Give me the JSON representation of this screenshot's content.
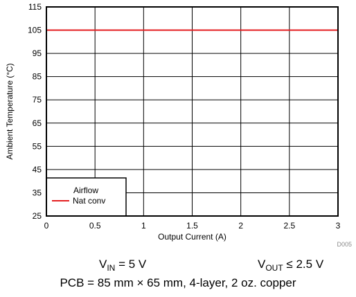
{
  "chart_data": {
    "type": "line",
    "title": "",
    "xlabel": "Output Current (A)",
    "ylabel": "Ambient Temperature (°C)",
    "xlim": [
      0,
      3
    ],
    "ylim": [
      25,
      115
    ],
    "x_ticks": [
      "0",
      "0.5",
      "1",
      "1.5",
      "2",
      "2.5",
      "3"
    ],
    "y_ticks": [
      "25",
      "35",
      "45",
      "55",
      "65",
      "75",
      "85",
      "95",
      "105",
      "115"
    ],
    "grid": true,
    "legend": {
      "title": "Airflow",
      "placement": "bottom-left"
    },
    "series": [
      {
        "name": "Nat conv",
        "color": "#e41e20",
        "x": [
          0,
          3
        ],
        "y": [
          105,
          105
        ]
      }
    ],
    "annotation": "D005"
  },
  "conditions": {
    "vin": {
      "prefix": "V",
      "sub": "IN",
      "suffix": " = 5 V"
    },
    "vout": {
      "prefix": "V",
      "sub": "OUT",
      "suffix": " ≤ 2.5 V"
    },
    "pcb": "PCB = 85 mm × 65 mm, 4-layer, 2 oz. copper"
  }
}
